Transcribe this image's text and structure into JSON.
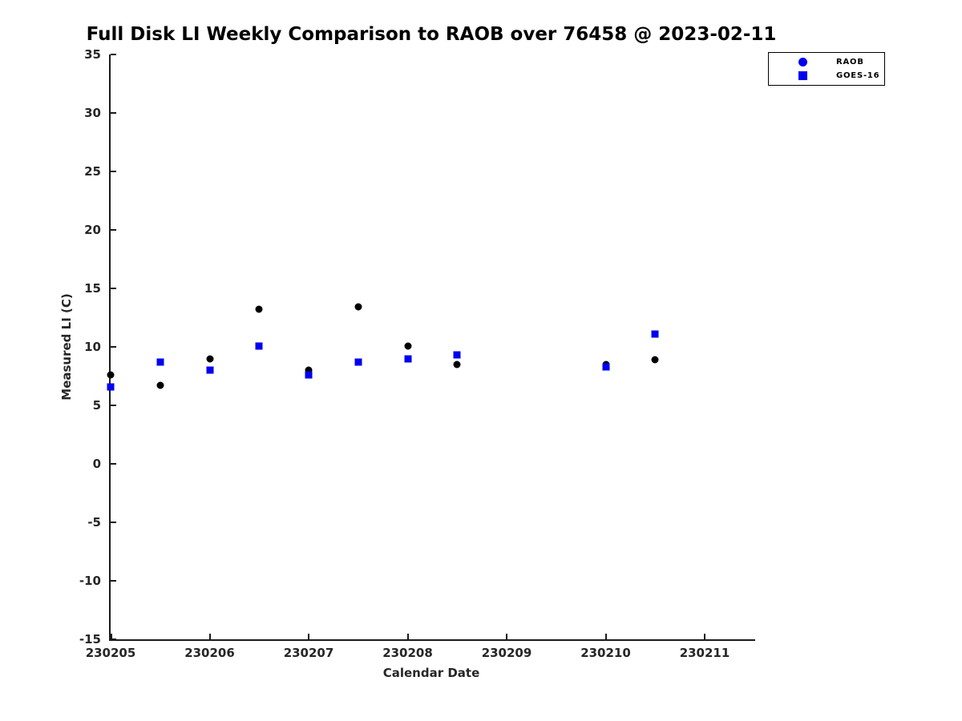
{
  "figure": {
    "title": "Full Disk LI Weekly Comparison to RAOB over 76458 @ 2023-02-11",
    "xlabel": "Calendar Date",
    "ylabel": "Measured LI (C)"
  },
  "colors": {
    "raob_plot_marker": "#000000",
    "goes_plot_marker": "#0000f0",
    "legend_marker_blue": "#0000f0",
    "axis": "#1a1a1a",
    "tick_text": "#262626"
  },
  "legend": {
    "items": [
      {
        "label": "RAOB",
        "marker": "circle",
        "color": "#0000f0"
      },
      {
        "label": "GOES-16",
        "marker": "square",
        "color": "#0000f0"
      }
    ]
  },
  "chart_data": {
    "type": "scatter",
    "title": "Full Disk LI Weekly Comparison to RAOB over 76458 @ 2023-02-11",
    "xlabel": "Calendar Date",
    "ylabel": "Measured LI (C)",
    "x": [
      230205,
      230205.5,
      230206,
      230206.5,
      230207,
      230207.5,
      230208,
      230208.5,
      230210,
      230210.5
    ],
    "series": [
      {
        "name": "RAOB",
        "marker": "circle",
        "color": "#000000",
        "values": [
          7.6,
          6.7,
          9.0,
          13.2,
          8.0,
          13.4,
          10.1,
          8.5,
          8.5,
          8.9
        ]
      },
      {
        "name": "GOES-16",
        "marker": "square",
        "color": "#0000f0",
        "values": [
          6.6,
          8.7,
          8.0,
          10.1,
          7.6,
          8.7,
          9.0,
          9.3,
          8.3,
          11.1
        ]
      }
    ],
    "xlim": [
      230205,
      230211.51
    ],
    "ylim": [
      -15,
      35
    ],
    "xticks": [
      230205,
      230206,
      230207,
      230208,
      230209,
      230210,
      230211
    ],
    "yticks": [
      35,
      30,
      25,
      20,
      15,
      10,
      5,
      0,
      -5,
      -10,
      -15
    ],
    "grid": false,
    "legend_position": "top-right"
  }
}
